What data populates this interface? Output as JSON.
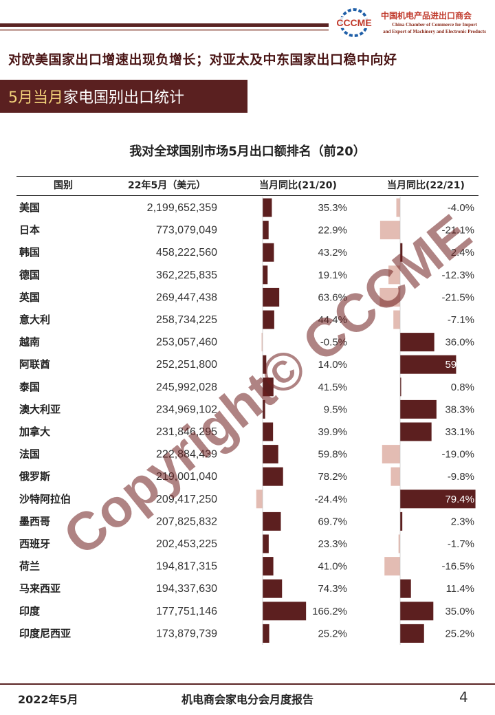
{
  "header": {
    "logo_text": "CCCME",
    "org_cn": "中国机电产品进出口商会",
    "org_en_line1": "China Chamber of Commerce for Import",
    "org_en_line2": "and Export of Machinery and Electronic Products"
  },
  "headline": "对欧美国家出口增速出现负增长；对亚太及中东国家出口稳中向好",
  "section": {
    "accent": "5月当月",
    "rest": "家电国别出口统计"
  },
  "table_headers": {
    "country": "国别",
    "value": "22年5月（美元）",
    "yoy_21_20": "当月同比(21/20)",
    "yoy_22_21": "当月同比(22/21)"
  },
  "chart_data": {
    "type": "table",
    "title": "我对全球国别市场5月出口额排名（前20）",
    "columns": [
      "国别",
      "22年5月（美元）",
      "当月同比(21/20)",
      "当月同比(22/21)"
    ],
    "rows": [
      {
        "country": "美国",
        "value": "2,199,652,359",
        "yoy_21_20": 35.3,
        "yoy_22_21": -4.0
      },
      {
        "country": "日本",
        "value": "773,079,049",
        "yoy_21_20": 22.9,
        "yoy_22_21": -21.1
      },
      {
        "country": "韩国",
        "value": "458,222,560",
        "yoy_21_20": 43.2,
        "yoy_22_21": 2.4
      },
      {
        "country": "德国",
        "value": "362,225,835",
        "yoy_21_20": 19.1,
        "yoy_22_21": -12.3
      },
      {
        "country": "英国",
        "value": "269,447,438",
        "yoy_21_20": 63.6,
        "yoy_22_21": -21.5
      },
      {
        "country": "意大利",
        "value": "258,734,225",
        "yoy_21_20": 44.4,
        "yoy_22_21": -7.1
      },
      {
        "country": "越南",
        "value": "253,057,460",
        "yoy_21_20": -0.5,
        "yoy_22_21": 36.0
      },
      {
        "country": "阿联酋",
        "value": "252,251,800",
        "yoy_21_20": 14.0,
        "yoy_22_21": 59.0
      },
      {
        "country": "泰国",
        "value": "245,992,028",
        "yoy_21_20": 41.5,
        "yoy_22_21": 0.8
      },
      {
        "country": "澳大利亚",
        "value": "234,969,102",
        "yoy_21_20": 9.5,
        "yoy_22_21": 38.3
      },
      {
        "country": "加拿大",
        "value": "231,846,295",
        "yoy_21_20": 39.9,
        "yoy_22_21": 33.1
      },
      {
        "country": "法国",
        "value": "222,884,439",
        "yoy_21_20": 59.8,
        "yoy_22_21": -19.0
      },
      {
        "country": "俄罗斯",
        "value": "219,001,040",
        "yoy_21_20": 78.2,
        "yoy_22_21": -9.8
      },
      {
        "country": "沙特阿拉伯",
        "value": "209,417,250",
        "yoy_21_20": -24.4,
        "yoy_22_21": 79.4
      },
      {
        "country": "墨西哥",
        "value": "207,825,832",
        "yoy_21_20": 69.7,
        "yoy_22_21": 2.3
      },
      {
        "country": "西班牙",
        "value": "202,453,225",
        "yoy_21_20": 23.3,
        "yoy_22_21": -1.7
      },
      {
        "country": "荷兰",
        "value": "194,817,315",
        "yoy_21_20": 41.0,
        "yoy_22_21": -16.5
      },
      {
        "country": "马来西亚",
        "value": "194,337,630",
        "yoy_21_20": 74.3,
        "yoy_22_21": 11.4
      },
      {
        "country": "印度",
        "value": "177,751,146",
        "yoy_21_20": 166.2,
        "yoy_22_21": 35.0
      },
      {
        "country": "印度尼西亚",
        "value": "173,879,739",
        "yoy_21_20": 25.2,
        "yoy_22_21": 25.2
      }
    ],
    "colors": {
      "positive": "#5c1f1f",
      "negative": "#e3bcb3"
    }
  },
  "watermark": "Copyright© CCCME",
  "footer": {
    "date": "2022年5月",
    "report": "机电商会家电分会月度报告",
    "page": "4"
  }
}
